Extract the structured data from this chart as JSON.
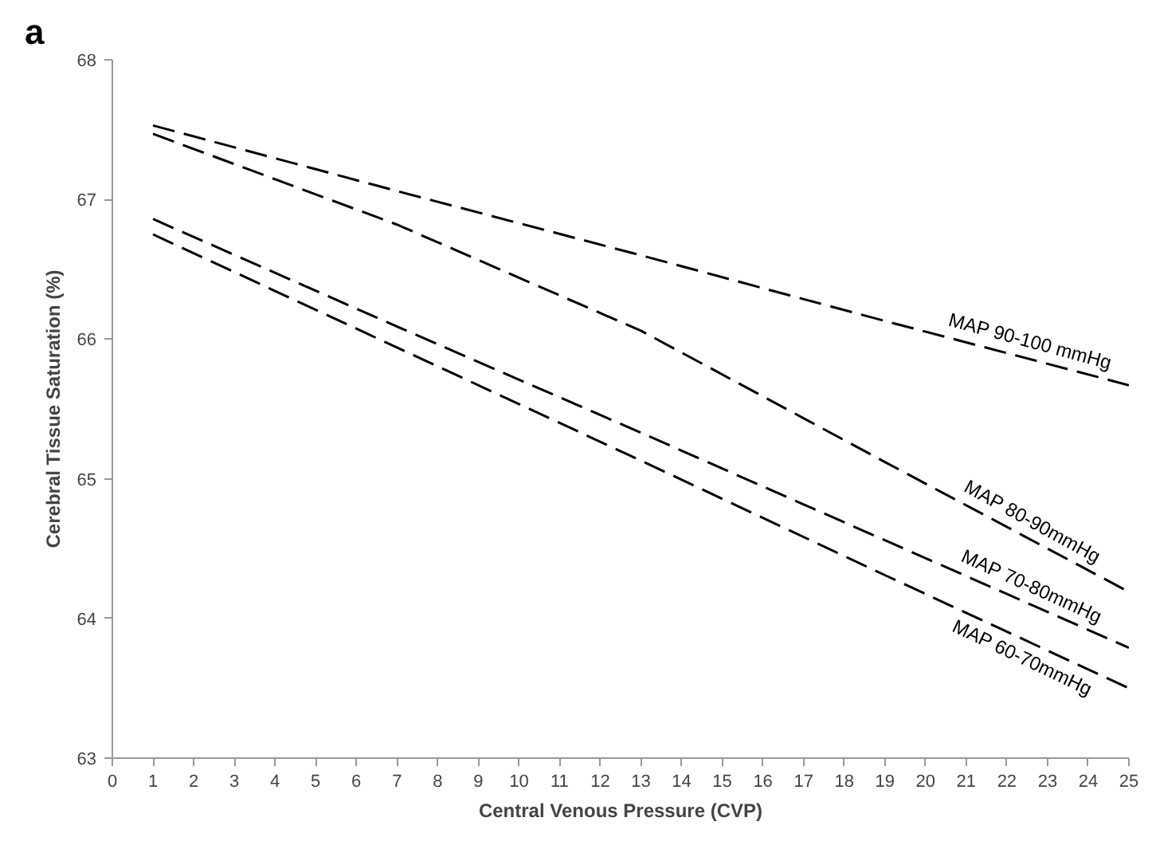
{
  "chart_data": {
    "type": "line",
    "xlabel": "Central Venous Pressure (CVP)",
    "ylabel": "Cerebral Tissue Saturation (%)",
    "x": [
      1,
      7,
      13,
      19,
      25
    ],
    "series": [
      {
        "name": "MAP 90-100 mmHg",
        "color": "#000000",
        "values": [
          67.53,
          67.06,
          66.6,
          66.13,
          65.67
        ]
      },
      {
        "name": "MAP 80-90mmHg",
        "color": "#000000",
        "values": [
          67.47,
          66.82,
          66.06,
          65.12,
          64.19
        ]
      },
      {
        "name": "MAP 70-80mmHg",
        "color": "#000000",
        "values": [
          66.86,
          66.09,
          65.33,
          64.56,
          63.79
        ]
      },
      {
        "name": "MAP 60-70mmHg",
        "color": "#000000",
        "values": [
          66.75,
          65.94,
          65.13,
          64.31,
          63.5
        ]
      }
    ],
    "annotations": [
      "a"
    ],
    "xlim": [
      0,
      25
    ],
    "ylim": [
      63,
      68
    ],
    "xticks": [
      0,
      1,
      2,
      3,
      4,
      5,
      6,
      7,
      8,
      9,
      10,
      11,
      12,
      13,
      14,
      15,
      16,
      17,
      18,
      19,
      20,
      21,
      22,
      23,
      24,
      25
    ],
    "yticks": [
      63,
      64,
      65,
      66,
      67,
      68
    ],
    "grid": false,
    "legend": false,
    "marker": "none",
    "line_style": "dashed"
  }
}
